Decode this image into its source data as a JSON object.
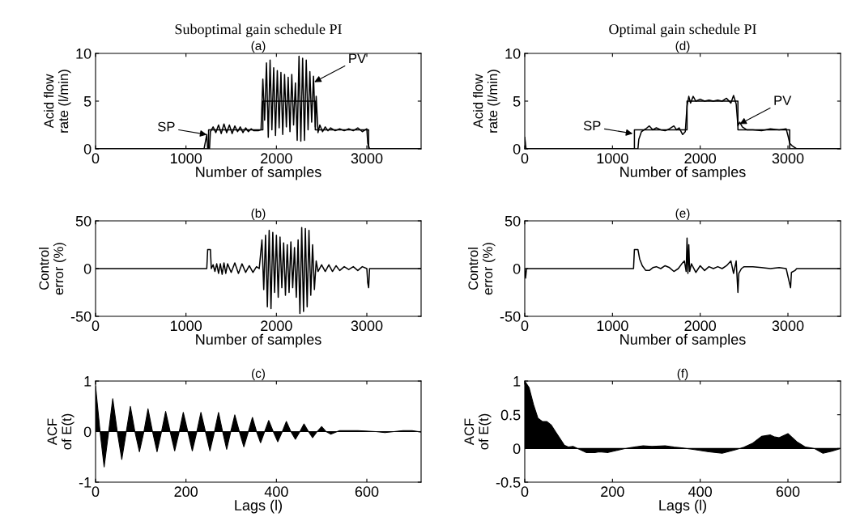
{
  "chart_data": [
    {
      "type": "line",
      "title": "Suboptimal gain schedule PI",
      "subtitle": "(a)",
      "xlabel": "Number of samples",
      "ylabel": "Acid flow\nrate (l/min)",
      "xlim": [
        0,
        3600
      ],
      "xticks": [
        0,
        1000,
        2000,
        3000
      ],
      "ylim": [
        0,
        10
      ],
      "yticks": [
        0,
        5,
        10
      ],
      "grid": false,
      "legend": false,
      "annotations": [
        {
          "text": "SP",
          "x": 1230,
          "y": 1.5
        },
        {
          "text": "PV",
          "x": 2420,
          "y": 7.0
        }
      ],
      "series": [
        {
          "color": "#000000",
          "x": [
            0,
            1250,
            1250,
            1850,
            1850,
            2430,
            2430,
            3020,
            3020,
            3600
          ],
          "values": [
            0,
            0,
            2,
            2,
            5,
            5,
            2,
            2,
            0,
            0
          ]
        },
        {
          "color": "#000000",
          "x": [
            0,
            1200,
            1230,
            1240,
            1260,
            1270,
            1300,
            1330,
            1360,
            1390,
            1420,
            1450,
            1480,
            1510,
            1540,
            1570,
            1600,
            1630,
            1660,
            1690,
            1720,
            1750,
            1800,
            1830,
            1850,
            1870,
            1890,
            1910,
            1930,
            1950,
            1970,
            1990,
            2010,
            2030,
            2050,
            2070,
            2090,
            2110,
            2130,
            2150,
            2170,
            2190,
            2210,
            2230,
            2250,
            2270,
            2290,
            2310,
            2330,
            2350,
            2370,
            2390,
            2410,
            2430,
            2440,
            2460,
            2480,
            2510,
            2540,
            2570,
            2600,
            2650,
            2700,
            2750,
            2800,
            2850,
            2900,
            2950,
            3000,
            3010,
            3030,
            3600
          ],
          "values": [
            0,
            0,
            1.5,
            0,
            0,
            1.8,
            2.3,
            1.7,
            2.5,
            1.6,
            2.6,
            1.7,
            2.5,
            1.6,
            2.4,
            1.8,
            2.3,
            1.7,
            2.2,
            1.8,
            2.1,
            1.9,
            1.9,
            2.0,
            7.3,
            3.0,
            9.0,
            1.2,
            9.3,
            2.0,
            8.5,
            1.4,
            8.2,
            2.2,
            8.0,
            1.5,
            7.8,
            2.3,
            7.5,
            1.8,
            7.8,
            2.5,
            6.9,
            0.9,
            9.7,
            0.8,
            9.5,
            0.9,
            9.3,
            2.0,
            8.1,
            2.8,
            7.6,
            2.3,
            5.5,
            1.7,
            2.5,
            1.8,
            2.3,
            1.9,
            2.2,
            1.9,
            2.1,
            1.9,
            2.1,
            1.9,
            2.2,
            1.8,
            2.1,
            0.6,
            0,
            0
          ]
        }
      ]
    },
    {
      "type": "line",
      "subtitle": "(b)",
      "xlabel": "Number of samples",
      "ylabel": "Control\nerror (%)",
      "xlim": [
        0,
        3600
      ],
      "xticks": [
        0,
        1000,
        2000,
        3000
      ],
      "ylim": [
        -50,
        50
      ],
      "yticks": [
        {
          "value": -50,
          "label": "-50"
        },
        0,
        50
      ],
      "grid": false,
      "legend": false,
      "series": [
        {
          "color": "#000000",
          "x": [
            0,
            1230,
            1240,
            1270,
            1280,
            1300,
            1320,
            1340,
            1360,
            1380,
            1400,
            1420,
            1440,
            1460,
            1500,
            1540,
            1580,
            1620,
            1660,
            1700,
            1740,
            1780,
            1810,
            1840,
            1860,
            1880,
            1900,
            1920,
            1940,
            1960,
            1980,
            2000,
            2020,
            2040,
            2060,
            2080,
            2100,
            2120,
            2140,
            2160,
            2180,
            2200,
            2220,
            2240,
            2260,
            2280,
            2300,
            2320,
            2340,
            2360,
            2380,
            2400,
            2420,
            2440,
            2460,
            2500,
            2540,
            2580,
            2620,
            2660,
            2700,
            2750,
            2800,
            2850,
            2900,
            2950,
            3000,
            3010,
            3020,
            3030,
            3600
          ],
          "values": [
            0,
            0,
            20,
            20,
            0,
            4,
            -3,
            5,
            -5,
            5,
            -6,
            6,
            -5,
            5,
            -4,
            6,
            -5,
            5,
            -4,
            3,
            -4,
            2,
            0,
            30,
            -22,
            35,
            -40,
            40,
            -42,
            38,
            -25,
            35,
            -30,
            33,
            -20,
            27,
            -28,
            25,
            -25,
            28,
            -20,
            22,
            -30,
            30,
            -47,
            43,
            -45,
            42,
            -40,
            40,
            -28,
            25,
            -22,
            8,
            -3,
            4,
            -3,
            4,
            -3,
            3,
            -2,
            2,
            -1,
            2,
            -2,
            2,
            0,
            -15,
            -20,
            0,
            0
          ]
        }
      ]
    },
    {
      "type": "area",
      "subtitle": "(c)",
      "xlabel": "Lags (l)",
      "ylabel": "ACF\nof E(t)",
      "xlim": [
        0,
        720
      ],
      "xticks": [
        0,
        200,
        400,
        600
      ],
      "ylim": [
        -1,
        1
      ],
      "yticks": [
        {
          "value": -1,
          "label": "-1"
        },
        0,
        1
      ],
      "grid": false,
      "legend": false,
      "series": [
        {
          "color": "#000000",
          "x": [
            0,
            10,
            19,
            29,
            38,
            48,
            58,
            68,
            77,
            87,
            97,
            107,
            116,
            126,
            136,
            146,
            155,
            165,
            175,
            185,
            194,
            204,
            214,
            224,
            233,
            243,
            253,
            263,
            272,
            281,
            290,
            299,
            308,
            318,
            328,
            338,
            347,
            356,
            365,
            374,
            383,
            393,
            403,
            413,
            422,
            432,
            442,
            452,
            461,
            471,
            480,
            490,
            500,
            510,
            520,
            540,
            580,
            620,
            640,
            680,
            700,
            720
          ],
          "values": [
            0.9,
            0,
            -0.7,
            0,
            0.65,
            0,
            -0.55,
            0,
            0.5,
            0,
            -0.4,
            0,
            0.45,
            0,
            -0.4,
            0,
            0.4,
            0,
            -0.38,
            0,
            0.38,
            0,
            -0.38,
            0,
            0.38,
            0,
            -0.38,
            0,
            0.38,
            0,
            -0.35,
            0,
            0.33,
            0,
            -0.3,
            0,
            0.28,
            0,
            -0.22,
            0,
            0.22,
            0,
            -0.2,
            0,
            0.2,
            0,
            -0.15,
            0,
            0.15,
            0,
            -0.12,
            0,
            0.1,
            0,
            -0.05,
            0.02,
            0.02,
            0,
            -0.02,
            0.02,
            0.02,
            -0.01
          ]
        }
      ]
    },
    {
      "type": "line",
      "title": "Optimal gain schedule PI",
      "subtitle": "(d)",
      "xlabel": "Number of samples",
      "ylabel": "Acid flow\nrate (l/min)",
      "xlim": [
        0,
        3600
      ],
      "xticks": [
        0,
        1000,
        2000,
        3000
      ],
      "ylim": [
        0,
        10
      ],
      "yticks": [
        0,
        5,
        10
      ],
      "grid": false,
      "legend": false,
      "annotations": [
        {
          "text": "SP",
          "x": 1230,
          "y": 1.6
        },
        {
          "text": "PV",
          "x": 2450,
          "y": 2.6
        }
      ],
      "series": [
        {
          "color": "#000000",
          "x": [
            0,
            1250,
            1250,
            1850,
            1850,
            2430,
            2430,
            3020,
            3020,
            3600
          ],
          "values": [
            0,
            0,
            2,
            2,
            5,
            5,
            2,
            2,
            0,
            0
          ]
        },
        {
          "color": "#000000",
          "x": [
            0,
            15,
            1290,
            1300,
            1330,
            1380,
            1420,
            1460,
            1500,
            1550,
            1600,
            1650,
            1700,
            1730,
            1760,
            1800,
            1830,
            1850,
            1870,
            1890,
            1920,
            1950,
            2000,
            2050,
            2100,
            2150,
            2200,
            2250,
            2300,
            2350,
            2380,
            2410,
            2430,
            2450,
            2480,
            2530,
            2600,
            2700,
            2800,
            2900,
            2980,
            3000,
            3020,
            3050,
            3100,
            3600
          ],
          "values": [
            1.2,
            0,
            0,
            1.0,
            1.8,
            2.1,
            2.4,
            2.0,
            2.2,
            2.0,
            1.9,
            2.1,
            2.4,
            2.0,
            2.2,
            1.5,
            1.8,
            4.5,
            5.5,
            4.8,
            5.5,
            5.0,
            5.2,
            5.0,
            5.1,
            5.0,
            5.1,
            5.0,
            5.3,
            4.8,
            5.6,
            4.7,
            2.4,
            2.8,
            2.3,
            2.0,
            2.0,
            1.9,
            2.1,
            2.0,
            2.1,
            1.4,
            0.6,
            0.3,
            0,
            0
          ]
        }
      ]
    },
    {
      "type": "line",
      "subtitle": "(e)",
      "xlabel": "Number of samples",
      "ylabel": "Control\nerror (%)",
      "xlim": [
        0,
        3600
      ],
      "xticks": [
        0,
        1000,
        2000,
        3000
      ],
      "ylim": [
        -50,
        50
      ],
      "yticks": [
        {
          "value": -50,
          "label": "-50"
        },
        0,
        50
      ],
      "grid": false,
      "legend": false,
      "series": [
        {
          "color": "#000000",
          "x": [
            0,
            10,
            20,
            1240,
            1250,
            1290,
            1310,
            1340,
            1380,
            1420,
            1460,
            1500,
            1550,
            1600,
            1650,
            1700,
            1750,
            1790,
            1820,
            1840,
            1850,
            1860,
            1870,
            1880,
            1900,
            1950,
            2000,
            2050,
            2100,
            2150,
            2200,
            2250,
            2300,
            2350,
            2380,
            2410,
            2430,
            2440,
            2470,
            2500,
            2600,
            2700,
            2800,
            2900,
            2980,
            3030,
            3040,
            3080,
            3100,
            3600
          ],
          "values": [
            0,
            -10,
            0,
            0,
            20,
            20,
            10,
            3,
            -2,
            -2,
            1,
            2,
            0,
            3,
            1,
            -3,
            0,
            5,
            8,
            -3,
            32,
            -5,
            25,
            -3,
            5,
            -4,
            3,
            -2,
            2,
            0,
            2,
            0,
            3,
            8,
            -5,
            8,
            -25,
            -5,
            0,
            2,
            2,
            1,
            0,
            1,
            0,
            -20,
            -4,
            -2,
            0,
            0
          ]
        }
      ]
    },
    {
      "type": "area",
      "subtitle": "(f)",
      "xlabel": "Lags (l)",
      "ylabel": "ACF\nof E(t)",
      "xlim": [
        0,
        720
      ],
      "xticks": [
        0,
        200,
        400,
        600
      ],
      "ylim": [
        -0.5,
        1
      ],
      "yticks": [
        {
          "value": -0.5,
          "label": "-0.5"
        },
        0,
        0.5,
        1
      ],
      "grid": false,
      "legend": false,
      "series": [
        {
          "color": "#000000",
          "x": [
            0,
            10,
            20,
            30,
            40,
            50,
            60,
            70,
            80,
            90,
            100,
            110,
            120,
            140,
            160,
            170,
            190,
            210,
            230,
            250,
            270,
            290,
            320,
            340,
            370,
            390,
            420,
            450,
            480,
            500,
            520,
            540,
            560,
            570,
            580,
            600,
            620,
            640,
            660,
            680,
            700,
            720
          ],
          "values": [
            1.0,
            0.9,
            0.65,
            0.45,
            0.4,
            0.4,
            0.35,
            0.25,
            0.15,
            0.05,
            0.02,
            0.03,
            0,
            -0.06,
            -0.06,
            -0.05,
            -0.06,
            -0.03,
            0,
            0.02,
            0.04,
            0.03,
            0.04,
            0.02,
            0,
            -0.02,
            -0.05,
            -0.07,
            -0.02,
            0.02,
            0.08,
            0.18,
            0.2,
            0.17,
            0.16,
            0.22,
            0.1,
            0.02,
            0,
            -0.07,
            -0.04,
            0
          ]
        }
      ]
    }
  ]
}
